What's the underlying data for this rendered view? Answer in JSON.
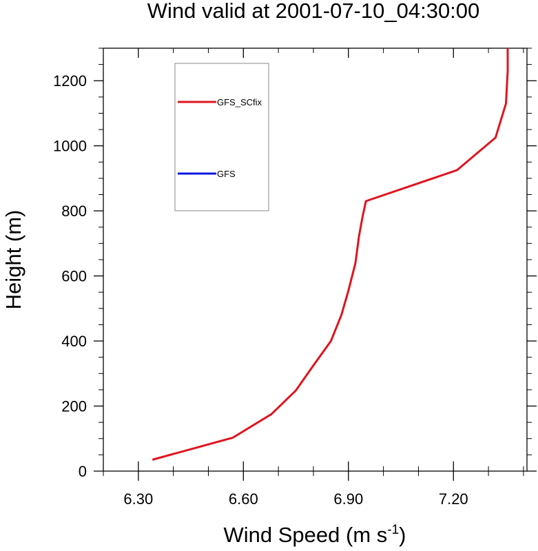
{
  "chart_data": {
    "type": "line",
    "title": "Wind valid at 2001-07-10_04:30:00",
    "xlabel": "Wind Speed (m s",
    "xlabel_superscript": "-1",
    "xlabel_close": ")",
    "ylabel": "Height (m)",
    "xlim": [
      6.2,
      7.41
    ],
    "ylim": [
      0,
      1300
    ],
    "xticks": [
      6.3,
      6.6,
      6.9,
      7.2
    ],
    "xtick_labels": [
      "6.30",
      "6.60",
      "6.90",
      "7.20"
    ],
    "yticks": [
      0,
      200,
      400,
      600,
      800,
      1000,
      1200
    ],
    "ytick_labels": [
      "0",
      "200",
      "400",
      "600",
      "800",
      "1000",
      "1200"
    ],
    "grid": false,
    "legend_position": "top-left",
    "series": [
      {
        "name": "GFS_SCfix",
        "color": "#e0141e",
        "x": [
          6.34,
          6.57,
          6.68,
          6.75,
          6.8,
          6.85,
          6.88,
          6.9,
          6.92,
          6.93,
          6.94,
          6.95,
          7.21,
          7.32,
          7.35,
          7.355,
          7.355
        ],
        "y": [
          35,
          103,
          175,
          248,
          325,
          400,
          480,
          555,
          640,
          720,
          780,
          830,
          925,
          1025,
          1130,
          1230,
          1300
        ]
      },
      {
        "name": "GFS",
        "color": "#0a14e0",
        "x": [],
        "y": []
      }
    ]
  }
}
